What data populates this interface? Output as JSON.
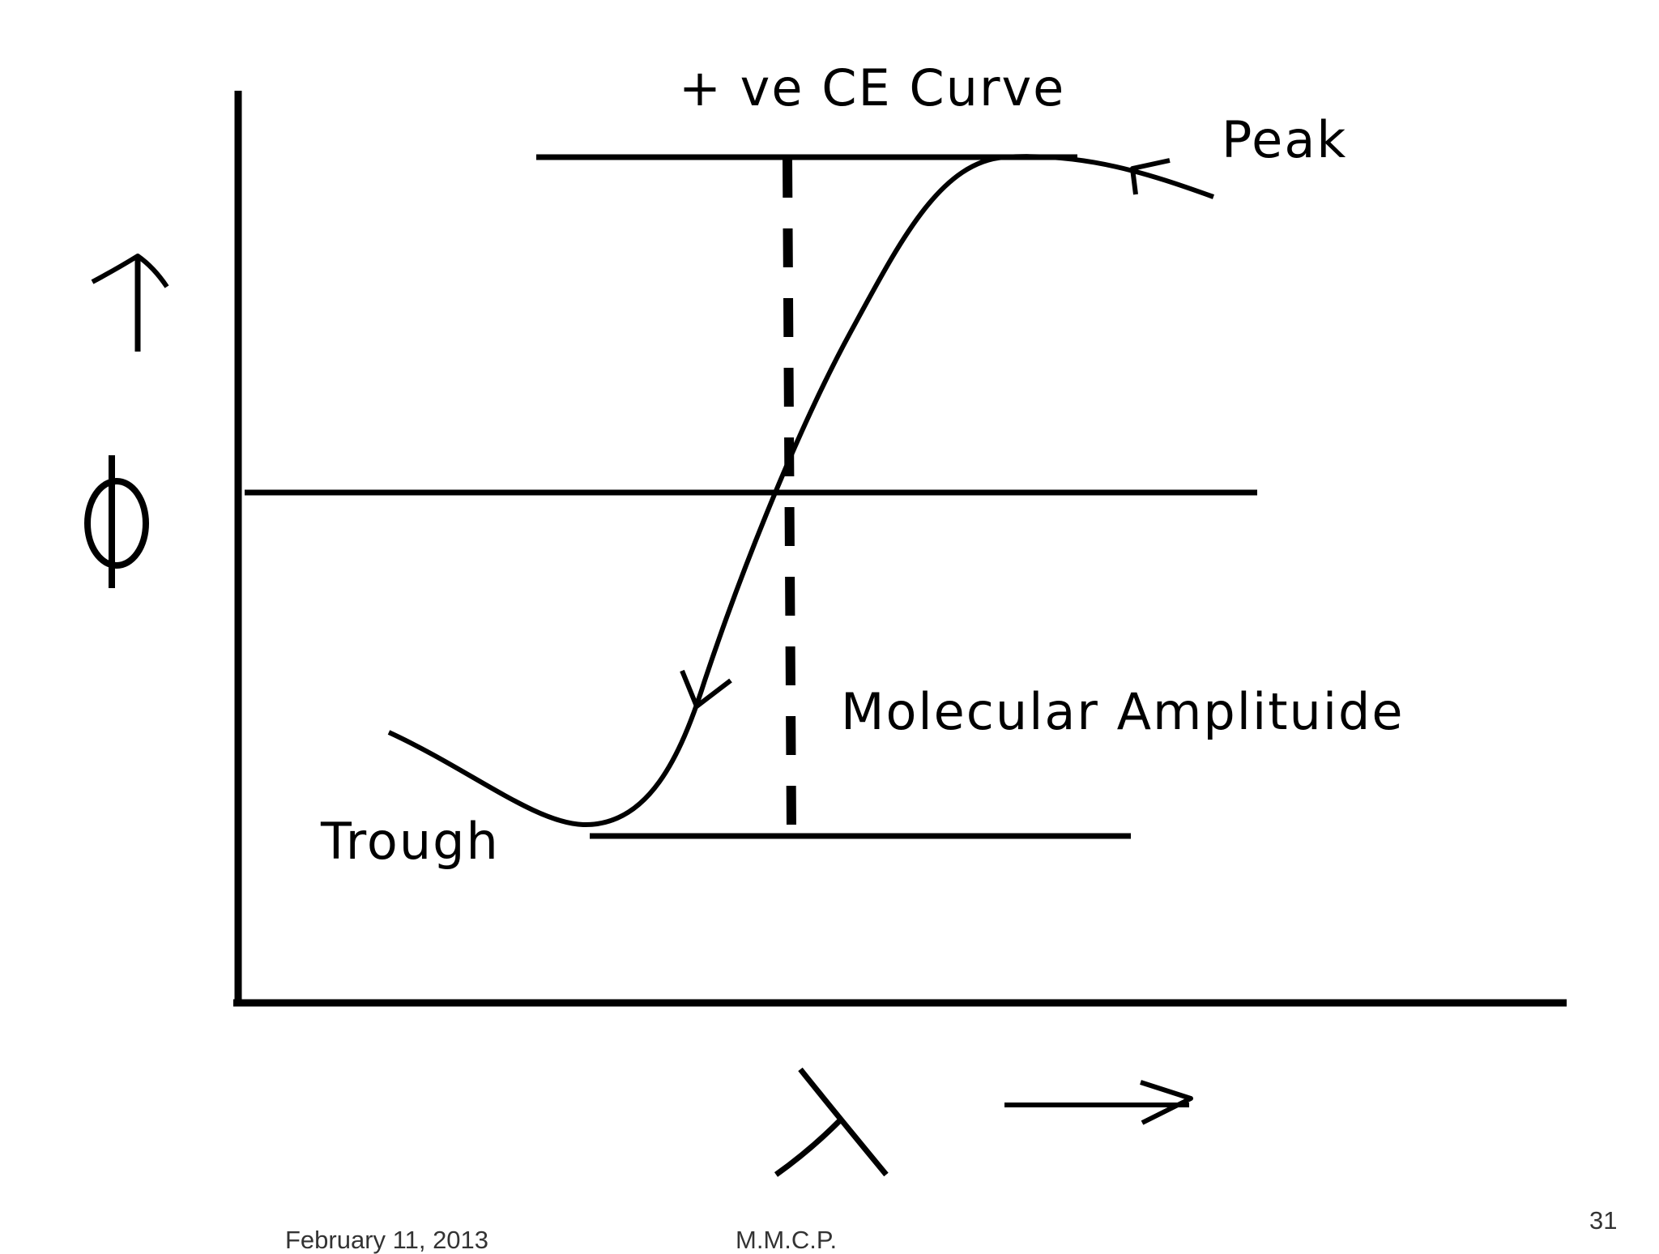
{
  "slide": {
    "title": "+ ve CE Curve",
    "labels": {
      "peak": "Peak",
      "trough": "Trough",
      "amplitude": "Molecular Amplituide"
    },
    "symbols": {
      "y_axis": "ϕ",
      "x_axis": "λ"
    }
  },
  "footer": {
    "date": "February 11, 2013",
    "author": "M.M.C.P.",
    "page": "31"
  },
  "colors": {
    "ink": "#000000",
    "background": "#ffffff",
    "footer_text": "#333333"
  }
}
